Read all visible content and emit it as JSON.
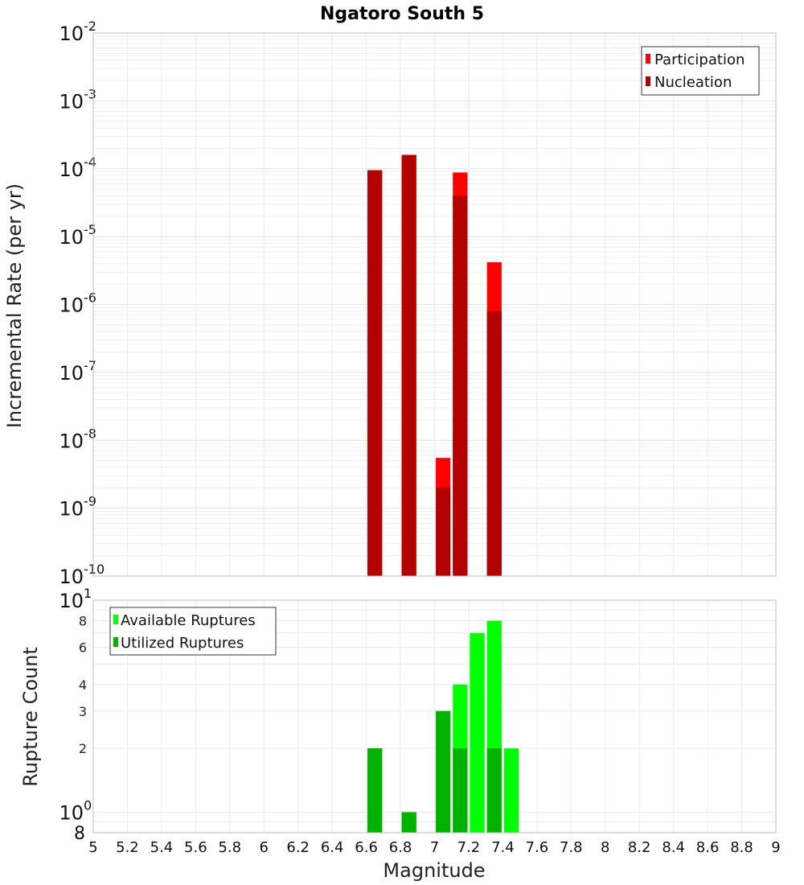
{
  "colors": {
    "participation": "#ff0000",
    "nucleation": "#b30000",
    "available": "#00ff00",
    "utilized": "#00b300",
    "grid": "#e8e8e8",
    "frame": "#bdbdbd"
  },
  "chart_data": [
    {
      "type": "bar",
      "title": "Ngatoro South 5",
      "xlabel": "",
      "ylabel": "Incremental Rate (per yr)",
      "yscale": "log",
      "xlim": [
        5,
        9
      ],
      "ylim": [
        1e-10,
        0.01
      ],
      "bin_width": 0.1,
      "y_ticks": [
        {
          "exp": -2,
          "base": "10",
          "sup": "-2"
        },
        {
          "exp": -3,
          "base": "10",
          "sup": "-3"
        },
        {
          "exp": -4,
          "base": "10",
          "sup": "-4"
        },
        {
          "exp": -5,
          "base": "10",
          "sup": "-5"
        },
        {
          "exp": -6,
          "base": "10",
          "sup": "-6"
        },
        {
          "exp": -7,
          "base": "10",
          "sup": "-7"
        },
        {
          "exp": -8,
          "base": "10",
          "sup": "-8"
        },
        {
          "exp": -9,
          "base": "10",
          "sup": "-9"
        },
        {
          "exp": -10,
          "base": "10",
          "sup": "-10"
        }
      ],
      "legend": {
        "position": "top-right",
        "entries": [
          "Participation",
          "Nucleation"
        ]
      },
      "series": [
        {
          "name": "Participation",
          "x": [
            6.65,
            6.85,
            7.05,
            7.15,
            7.35
          ],
          "values": [
            9.5e-05,
            0.00016,
            5.5e-09,
            8.8e-05,
            4.2e-06
          ]
        },
        {
          "name": "Nucleation",
          "x": [
            6.65,
            6.85,
            7.05,
            7.15,
            7.35
          ],
          "values": [
            9.5e-05,
            0.00016,
            2e-09,
            4e-05,
            8e-07
          ]
        }
      ]
    },
    {
      "type": "bar",
      "title": "",
      "xlabel": "Magnitude",
      "ylabel": "Rupture Count",
      "yscale": "log",
      "xlim": [
        5,
        9
      ],
      "ylim": [
        0.8,
        10
      ],
      "bin_width": 0.1,
      "x_ticks": [
        "5",
        "5.2",
        "5.4",
        "5.6",
        "5.8",
        "6",
        "6.2",
        "6.4",
        "6.6",
        "6.8",
        "7",
        "7.2",
        "7.4",
        "7.6",
        "7.8",
        "8",
        "8.2",
        "8.4",
        "8.6",
        "8.8",
        "9"
      ],
      "y_major_ticks": [
        {
          "value": 10,
          "base": "10",
          "sup": "1"
        },
        {
          "value": 1,
          "base": "10",
          "sup": "0"
        }
      ],
      "y_minor_ticks": [
        {
          "value": 8,
          "label": "8"
        },
        {
          "value": 6,
          "label": "6"
        },
        {
          "value": 4,
          "label": "4"
        },
        {
          "value": 3,
          "label": "3"
        },
        {
          "value": 2,
          "label": "2"
        }
      ],
      "y_bottom_label": {
        "value": 0.8,
        "label": "8"
      },
      "legend": {
        "position": "top-left",
        "entries": [
          "Available Ruptures",
          "Utilized Ruptures"
        ]
      },
      "series": [
        {
          "name": "Available Ruptures",
          "x": [
            6.65,
            6.85,
            7.05,
            7.15,
            7.25,
            7.35,
            7.45
          ],
          "values": [
            2,
            1,
            3,
            4,
            7,
            8,
            2
          ]
        },
        {
          "name": "Utilized Ruptures",
          "x": [
            6.65,
            6.85,
            7.05,
            7.15,
            7.35
          ],
          "values": [
            2,
            1,
            3,
            2,
            2
          ]
        }
      ]
    }
  ]
}
